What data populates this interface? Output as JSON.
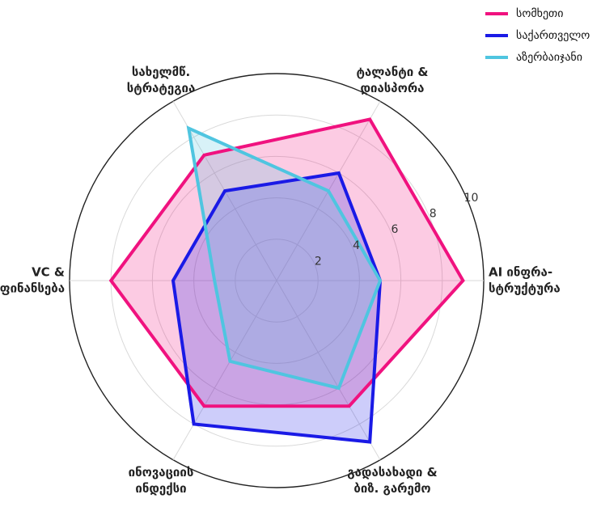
{
  "chart_data": {
    "type": "radar",
    "axes": [
      [
        "AI ინფრა-",
        "სტრუქტურა"
      ],
      [
        "ტალანტი &",
        "დიასპორა"
      ],
      [
        "სახელმწ.",
        "სტრატეგია"
      ],
      [
        "VC &",
        "დაფინანსება"
      ],
      [
        "ინოვაციის",
        "ინდექსი"
      ],
      [
        "გადასახადი &",
        "ბიზ. გარემო"
      ]
    ],
    "rlim": [
      0,
      10
    ],
    "rticks": [
      2,
      4,
      6,
      8,
      10
    ],
    "grid": true,
    "legend_position": "top-right",
    "series": [
      {
        "name": "სომხეთი",
        "color": "#f0127f",
        "values": [
          9.0,
          9.0,
          7.0,
          8.0,
          7.0,
          7.0
        ]
      },
      {
        "name": "საქართველო",
        "color": "#1a1ae6",
        "values": [
          5.0,
          6.0,
          5.0,
          5.0,
          8.0,
          9.0
        ]
      },
      {
        "name": "აზერბაიჯანი",
        "color": "#4fc5e0",
        "values": [
          5.0,
          5.0,
          8.5,
          3.0,
          4.5,
          6.0
        ]
      }
    ]
  }
}
